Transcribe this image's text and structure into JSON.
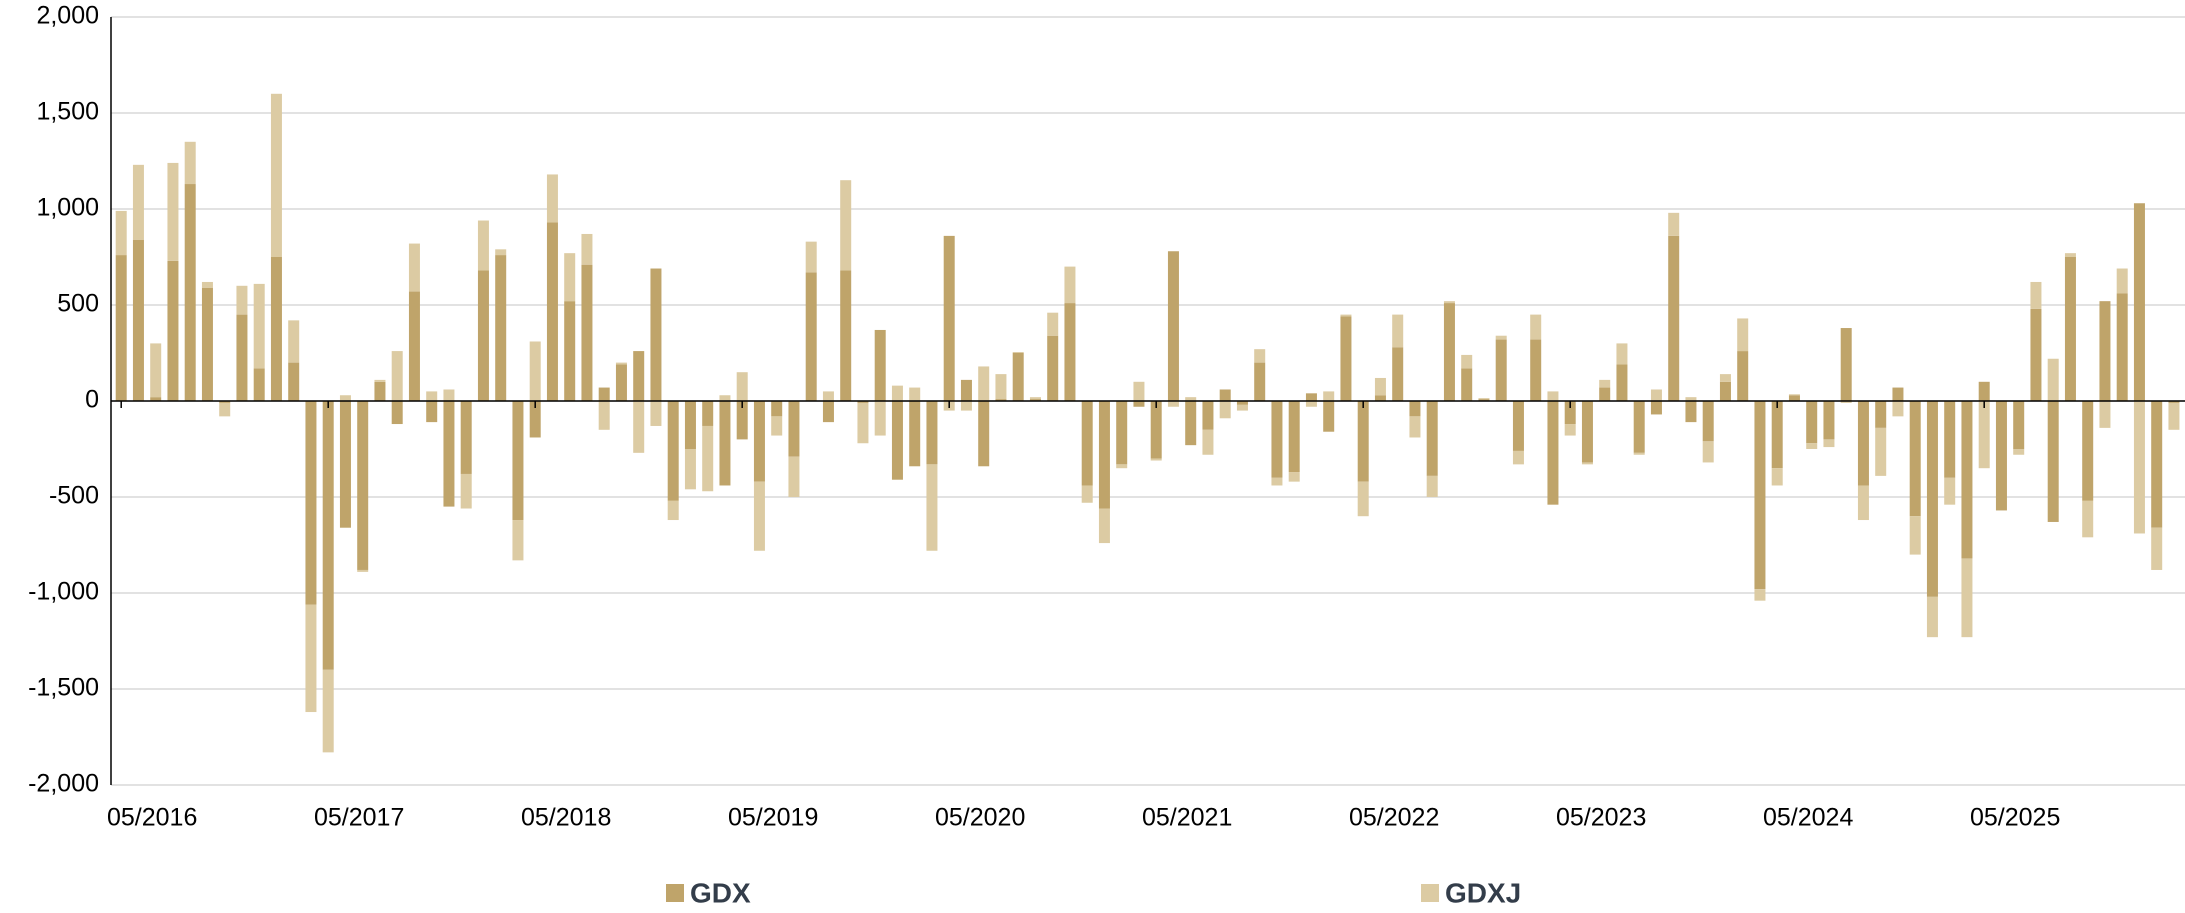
{
  "chart_data": {
    "type": "stacked_bar",
    "categories": [
      "05/2016",
      null,
      null,
      null,
      null,
      null,
      null,
      null,
      null,
      null,
      null,
      null,
      "05/2017",
      null,
      null,
      null,
      null,
      null,
      null,
      null,
      null,
      null,
      null,
      null,
      "05/2018",
      null,
      null,
      null,
      null,
      null,
      null,
      null,
      null,
      null,
      null,
      null,
      "05/2019",
      null,
      null,
      null,
      null,
      null,
      null,
      null,
      null,
      null,
      null,
      null,
      "05/2020",
      null,
      null,
      null,
      null,
      null,
      null,
      null,
      null,
      null,
      null,
      null,
      "05/2021",
      null,
      null,
      null,
      null,
      null,
      null,
      null,
      null,
      null,
      null,
      null,
      "05/2022",
      null,
      null,
      null,
      null,
      null,
      null,
      null,
      null,
      null,
      null,
      null,
      "05/2023",
      null,
      null,
      null,
      null,
      null,
      null,
      null,
      null,
      null,
      null,
      null,
      "05/2024",
      null,
      null,
      null,
      null,
      null,
      null,
      null,
      null,
      null,
      null,
      null,
      "05/2025",
      null,
      null,
      null,
      null,
      null,
      null,
      null,
      null,
      null,
      null,
      null
    ],
    "series": [
      {
        "name": "GDX",
        "color": "#bfa46a",
        "values": [
          760,
          840,
          20,
          730,
          1130,
          590,
          -10,
          450,
          170,
          750,
          200,
          -1060,
          -1400,
          -660,
          -880,
          100,
          -120,
          570,
          -110,
          -550,
          -380,
          680,
          760,
          -620,
          -190,
          930,
          520,
          710,
          70,
          190,
          260,
          690,
          -520,
          -250,
          -130,
          -440,
          -200,
          -420,
          -80,
          -290,
          670,
          -110,
          680,
          -10,
          370,
          -410,
          -340,
          -330,
          860,
          110,
          -340,
          10,
          250,
          10,
          340,
          510,
          -440,
          -560,
          -330,
          -30,
          -300,
          780,
          -230,
          -150,
          60,
          -20,
          200,
          -400,
          -370,
          40,
          -160,
          440,
          -420,
          30,
          280,
          -80,
          -390,
          510,
          170,
          10,
          320,
          -260,
          320,
          -540,
          -120,
          -320,
          70,
          190,
          -270,
          -70,
          860,
          -110,
          -210,
          100,
          260,
          -980,
          -350,
          30,
          -220,
          -200,
          380,
          -440,
          -140,
          70,
          -600,
          -1020,
          -400,
          -820,
          100,
          -570,
          -250,
          480,
          -630,
          750,
          -520,
          520,
          560,
          1030,
          -660,
          -10
        ]
      },
      {
        "name": "GDXJ",
        "color": "#dccba3",
        "values": [
          230,
          390,
          280,
          510,
          220,
          30,
          -70,
          150,
          440,
          850,
          220,
          -560,
          -430,
          30,
          -10,
          10,
          260,
          250,
          50,
          60,
          -180,
          260,
          30,
          -210,
          310,
          250,
          250,
          160,
          -150,
          10,
          -270,
          -130,
          -100,
          -210,
          -340,
          30,
          150,
          -360,
          -100,
          -210,
          160,
          50,
          470,
          -210,
          -180,
          80,
          70,
          -450,
          -50,
          -50,
          180,
          130,
          5,
          10,
          120,
          190,
          -90,
          -180,
          -20,
          100,
          -10,
          -30,
          20,
          -130,
          -90,
          -30,
          70,
          -40,
          -50,
          -30,
          50,
          10,
          -180,
          90,
          170,
          -110,
          -110,
          10,
          70,
          5,
          20,
          -70,
          130,
          50,
          -60,
          -10,
          40,
          110,
          -10,
          60,
          120,
          20,
          -110,
          40,
          170,
          -60,
          -90,
          5,
          -30,
          -40,
          -10,
          -180,
          -250,
          -80,
          -200,
          -210,
          -140,
          -410,
          -350,
          0,
          -30,
          140,
          220,
          20,
          -190,
          -140,
          130,
          -690,
          -220,
          -140
        ]
      }
    ],
    "ylim": [
      -2000,
      2000
    ],
    "yticks": [
      {
        "value": -2000,
        "label": "-2,000"
      },
      {
        "value": -1500,
        "label": "-1,500"
      },
      {
        "value": -1000,
        "label": "-1,000"
      },
      -500,
      0,
      500,
      {
        "value": 1000,
        "label": "1,000"
      },
      {
        "value": 1500,
        "label": "1,500"
      },
      {
        "value": 2000,
        "label": "2,000"
      }
    ],
    "grid": true,
    "legend": "bottom"
  }
}
